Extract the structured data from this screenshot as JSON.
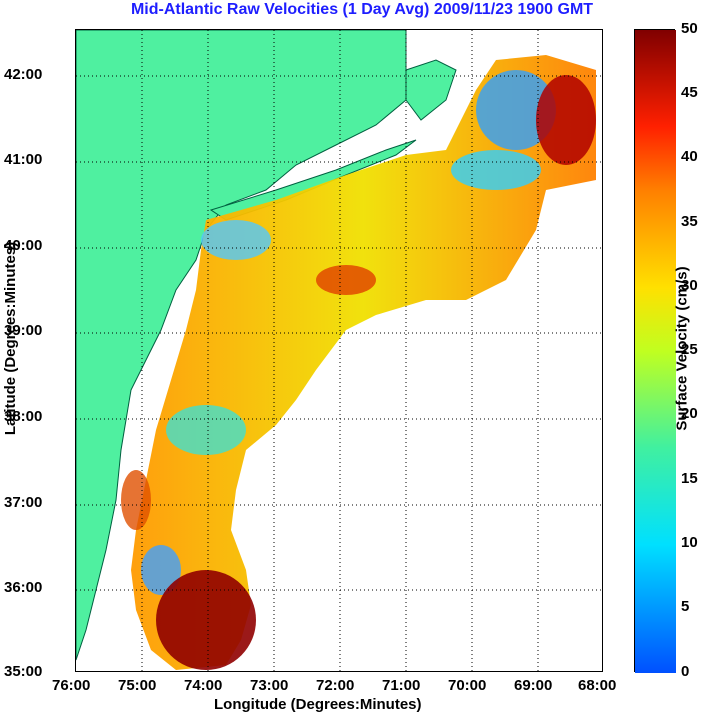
{
  "title": "Mid-Atlantic Raw Velocities (1 Day Avg) 2009/11/23 1900 GMT",
  "x_axis": {
    "label": "Longitude (Degrees:Minutes)",
    "ticks": [
      "76:00",
      "75:00",
      "74:00",
      "73:00",
      "72:00",
      "71:00",
      "70:00",
      "69:00",
      "68:00"
    ]
  },
  "y_axis": {
    "label": "Latitude (Degrees:Minutes)",
    "ticks": [
      "42:00",
      "41:00",
      "40:00",
      "39:00",
      "38:00",
      "37:00",
      "36:00",
      "35:00"
    ]
  },
  "colorbar": {
    "label": "Surface Velocity (cm/s)",
    "ticks": [
      "50",
      "45",
      "40",
      "35",
      "30",
      "25",
      "20",
      "15",
      "10",
      "5",
      "0"
    ],
    "range": [
      0,
      50
    ]
  },
  "colors": {
    "land": "#4ff0a0",
    "title": "#1e1eff"
  }
}
